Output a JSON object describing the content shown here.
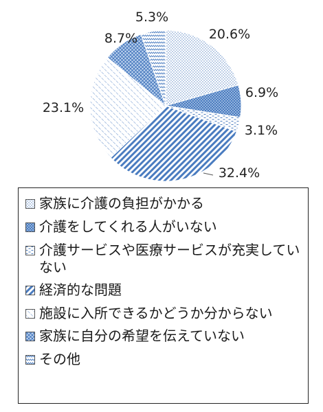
{
  "chart_data": {
    "type": "pie",
    "start_angle_deg": 0,
    "direction": "clockwise",
    "legend_position": "bottom",
    "slices": [
      {
        "label": "家族に介護の負担がかかる",
        "value": 20.6,
        "value_label": "20.6%",
        "pattern": "dots-small",
        "color": "#5b87c5"
      },
      {
        "label": "介護をしてくれる人がいない",
        "value": 6.9,
        "value_label": "6.9%",
        "pattern": "dots-dense",
        "color": "#3a6fb8"
      },
      {
        "label": "介護サービスや医療サービスが充実していない",
        "value": 3.1,
        "value_label": "3.1%",
        "pattern": "dashes",
        "color": "#5b87c5"
      },
      {
        "label": "経済的な問題",
        "value": 32.4,
        "value_label": "32.4%",
        "pattern": "diag-down",
        "color": "#3a6fb8"
      },
      {
        "label": "施設に入所できるかどうか分からない",
        "value": 23.1,
        "value_label": "23.1%",
        "pattern": "diag-up",
        "color": "#8fb0da"
      },
      {
        "label": "家族に自分の希望を伝えていない",
        "value": 8.7,
        "value_label": "8.7%",
        "pattern": "grid",
        "color": "#5b87c5"
      },
      {
        "label": "その他",
        "value": 5.3,
        "value_label": "5.3%",
        "pattern": "zigzag",
        "color": "#5b87c5"
      }
    ]
  }
}
